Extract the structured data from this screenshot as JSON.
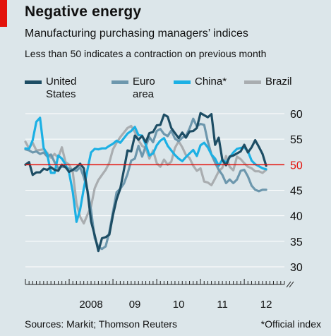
{
  "header": {
    "title": "Negative energy",
    "subtitle": "Manufacturing purchasing managers’ indices",
    "note": "Less than 50 indicates a contraction on previous month"
  },
  "footer": {
    "source": "Sources: Markit; Thomson Reuters",
    "footnote": "*Official index"
  },
  "colors": {
    "background": "#dce6ea",
    "accent_red": "#e3120b",
    "united_states": "#1d4d64",
    "euro_area": "#6d97ad",
    "china": "#1cb0e4",
    "brazil": "#a9adb0",
    "grid": "#ffffff"
  },
  "chart_data": {
    "type": "line",
    "title": "Negative energy",
    "subtitle": "Manufacturing purchasing managers’ indices",
    "note": "Less than 50 indicates a contraction on previous month",
    "xlabel": "",
    "ylabel": "",
    "x_tick_labels": [
      "2008",
      "09",
      "10",
      "11",
      "12"
    ],
    "x_tick_positions": [
      2008.5,
      2009.5,
      2010.5,
      2011.5,
      2012.5
    ],
    "xlim": [
      2007.0,
      2012.917
    ],
    "ylim": [
      30,
      60
    ],
    "y_ticks": [
      30,
      35,
      40,
      45,
      50,
      55,
      60
    ],
    "y_tick_labels": [
      "30",
      "35",
      "40",
      "45",
      "50",
      "55",
      "60"
    ],
    "reference_line": 50,
    "reference_line_color": "#e3120b",
    "grid": true,
    "y_axis_side": "right",
    "legend_position": "top",
    "series": [
      {
        "name": "United States",
        "label_lines": [
          "United",
          "States"
        ],
        "color": "#1d4d64",
        "values": [
          50.0,
          50.5,
          48.0,
          48.5,
          48.5,
          49.2,
          49.0,
          49.5,
          49.0,
          48.8,
          50.0,
          49.5,
          48.6,
          49.0,
          49.5,
          50.2,
          49.3,
          44.9,
          38.9,
          36.2,
          33.1,
          35.6,
          35.8,
          36.3,
          40.1,
          43.2,
          45.3,
          49.0,
          52.8,
          52.6,
          55.7,
          54.9,
          55.6,
          54.4,
          56.2,
          56.4,
          57.7,
          57.8,
          59.8,
          59.4,
          57.2,
          56.2,
          55.2,
          56.3,
          55.3,
          56.5,
          56.6,
          57.2,
          60.1,
          59.7,
          59.3,
          59.9,
          53.9,
          55.3,
          50.9,
          49.9,
          51.6,
          51.8,
          52.2,
          52.6,
          53.9,
          52.4,
          53.4,
          54.8,
          53.5,
          52.1,
          49.8
        ]
      },
      {
        "name": "Euro area",
        "label_lines": [
          "Euro",
          "area"
        ],
        "color": "#6d97ad",
        "values": [
          53.0,
          52.8,
          52.4,
          52.6,
          52.1,
          52.4,
          51.6,
          52.0,
          50.5,
          49.3,
          49.6,
          49.5,
          49.2,
          49.0,
          48.8,
          49.5,
          47.6,
          45.0,
          41.1,
          35.6,
          33.9,
          33.5,
          34.0,
          36.8,
          40.7,
          44.6,
          45.3,
          46.3,
          48.2,
          50.8,
          51.2,
          53.7,
          51.6,
          53.7,
          55.4,
          54.4,
          56.6,
          57.0,
          56.0,
          55.6,
          56.7,
          55.1,
          54.6,
          55.3,
          55.6,
          57.1,
          59.0,
          57.5,
          58.0,
          57.8,
          54.6,
          52.0,
          50.4,
          49.0,
          48.0,
          46.4,
          47.1,
          46.4,
          47.1,
          48.8,
          49.0,
          47.7,
          45.9,
          45.1,
          44.8,
          45.1,
          45.1
        ]
      },
      {
        "name": "China*",
        "label_lines": [
          "China*"
        ],
        "color": "#1cb0e4",
        "values": [
          53.2,
          53.1,
          54.8,
          58.4,
          59.2,
          53.3,
          52.0,
          48.4,
          48.4,
          51.8,
          51.2,
          50.0,
          48.4,
          44.6,
          38.8,
          41.2,
          45.3,
          49.0,
          52.4,
          53.1,
          53.0,
          53.2,
          53.2,
          53.7,
          54.1,
          54.7,
          54.3,
          55.2,
          56.1,
          56.6,
          57.4,
          55.8,
          55.7,
          53.9,
          51.8,
          52.2,
          53.8,
          54.7,
          55.2,
          53.7,
          52.8,
          51.9,
          51.2,
          50.7,
          51.5,
          52.2,
          52.9,
          51.7,
          53.8,
          54.3,
          53.4,
          52.0,
          51.2,
          49.8,
          51.0,
          50.4,
          51.4,
          52.4,
          53.1,
          53.3,
          53.4,
          52.6,
          50.8,
          50.1,
          49.7,
          49.3,
          49.1
        ]
      },
      {
        "name": "Brazil",
        "label_lines": [
          "Brazil"
        ],
        "color": "#a9adb0",
        "values": [
          54.5,
          53.2,
          54.3,
          52.8,
          52.9,
          53.0,
          52.3,
          51.4,
          52.1,
          51.4,
          53.4,
          50.5,
          50.0,
          48.5,
          42.5,
          39.8,
          38.5,
          40.2,
          41.8,
          45.4,
          47.0,
          48.0,
          49.0,
          50.4,
          53.0,
          54.3,
          55.4,
          56.3,
          57.2,
          57.6,
          56.4,
          54.8,
          53.7,
          53.2,
          51.2,
          52.8,
          50.3,
          49.6,
          51.0,
          50.0,
          50.6,
          53.3,
          54.6,
          53.4,
          51.9,
          51.3,
          49.8,
          48.8,
          49.3,
          46.7,
          46.5,
          46.0,
          47.3,
          48.7,
          49.4,
          51.7,
          49.6,
          48.9,
          51.6,
          51.1,
          50.3,
          49.6,
          49.3,
          48.7,
          48.7,
          48.4,
          49.0
        ]
      }
    ]
  }
}
